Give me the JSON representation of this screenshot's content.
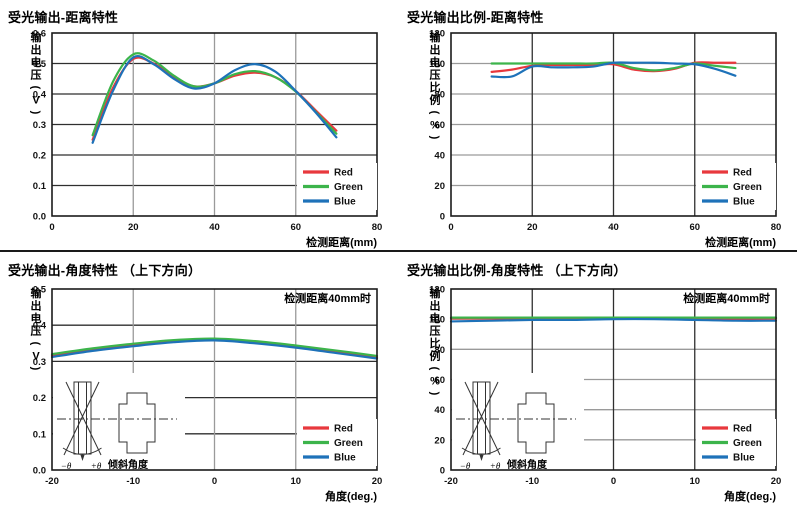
{
  "page": {
    "language": "zh-CN",
    "legend_labels": [
      "Red",
      "Green",
      "Blue"
    ]
  },
  "colors": {
    "red": "#e8383d",
    "green": "#3cb44b",
    "blue": "#1e72b9",
    "grid_dark": "#2f2f2f",
    "grid_light": "#9a9a9a",
    "border": "#1a1a1a",
    "text": "#000000"
  },
  "chart_data": [
    {
      "type": "line",
      "title": "受光输出-距离特性",
      "ylabel": "输出电压（V）",
      "xlabel": "检测距离（mm）",
      "xlim": [
        0,
        80
      ],
      "ylim": [
        0,
        0.6
      ],
      "xticks": [
        0,
        20,
        40,
        60,
        80
      ],
      "xtick_labels": [
        "0",
        "20",
        "40",
        "60",
        "80"
      ],
      "yticks": [
        0,
        0.1,
        0.2,
        0.3,
        0.4,
        0.5,
        0.6
      ],
      "ytick_labels": [
        "0.0",
        "0.1",
        "0.2",
        "0.3",
        "0.4",
        "0.5",
        "0.6"
      ],
      "grid_h": "dark",
      "grid_v": "light",
      "legend_position": "bottom-right-inside",
      "x": [
        10,
        15,
        20,
        25,
        30,
        35,
        40,
        45,
        50,
        55,
        60,
        65,
        70
      ],
      "series": [
        {
          "name": "Red",
          "color": "#e8383d",
          "values": [
            0.25,
            0.42,
            0.515,
            0.5,
            0.455,
            0.425,
            0.435,
            0.46,
            0.47,
            0.455,
            0.41,
            0.345,
            0.28
          ]
        },
        {
          "name": "Green",
          "color": "#3cb44b",
          "values": [
            0.265,
            0.44,
            0.53,
            0.51,
            0.46,
            0.425,
            0.435,
            0.465,
            0.475,
            0.455,
            0.408,
            0.34,
            0.27
          ]
        },
        {
          "name": "Blue",
          "color": "#1e72b9",
          "values": [
            0.24,
            0.41,
            0.52,
            0.498,
            0.45,
            0.418,
            0.435,
            0.478,
            0.498,
            0.473,
            0.41,
            0.338,
            0.258
          ]
        }
      ]
    },
    {
      "type": "line",
      "title": "受光输出比例-距离特性",
      "ylabel": "输出电压比例（%）",
      "xlabel": "检测距离（mm）",
      "xlim": [
        0,
        80
      ],
      "ylim": [
        0,
        120
      ],
      "xticks": [
        0,
        20,
        40,
        60,
        80
      ],
      "xtick_labels": [
        "0",
        "20",
        "40",
        "60",
        "80"
      ],
      "yticks": [
        0,
        20,
        40,
        60,
        80,
        100,
        120
      ],
      "ytick_labels": [
        "0",
        "20",
        "40",
        "60",
        "80",
        "100",
        "120"
      ],
      "grid_h": "light",
      "grid_v": "dark",
      "legend_position": "bottom-right-inside",
      "x": [
        10,
        15,
        20,
        25,
        30,
        35,
        40,
        45,
        50,
        55,
        60,
        65,
        70
      ],
      "series": [
        {
          "name": "Red",
          "color": "#e8383d",
          "values": [
            94.5,
            96,
            98.5,
            99,
            99,
            99,
            99.5,
            96,
            95,
            96.5,
            100.5,
            100.5,
            100.5
          ]
        },
        {
          "name": "Green",
          "color": "#3cb44b",
          "values": [
            100,
            100,
            100,
            100,
            100,
            100,
            100.5,
            97,
            95.5,
            97,
            100,
            98.5,
            97
          ]
        },
        {
          "name": "Blue",
          "color": "#1e72b9",
          "values": [
            91.5,
            91.5,
            98,
            97.5,
            97.5,
            98,
            100.5,
            100.5,
            100.5,
            100,
            99.5,
            96.5,
            92
          ]
        }
      ]
    },
    {
      "type": "line",
      "title": "受光输出-角度特性 （上下方向）",
      "ylabel": "输出电压（V）",
      "xlabel": "角度（deg.）",
      "annotation": "检测距离40mm时",
      "inset_label": "倾斜角度",
      "inset_theta_minus": "−θ",
      "inset_theta_plus": "+θ",
      "xlim": [
        -20,
        20
      ],
      "ylim": [
        0,
        0.5
      ],
      "xticks": [
        -20,
        -10,
        0,
        10,
        20
      ],
      "xtick_labels": [
        "-20",
        "-10",
        "0",
        "10",
        "20"
      ],
      "yticks": [
        0,
        0.1,
        0.2,
        0.3,
        0.4,
        0.5
      ],
      "ytick_labels": [
        "0.0",
        "0.1",
        "0.2",
        "0.3",
        "0.4",
        "0.5"
      ],
      "grid_h": "dark",
      "grid_v": "light",
      "legend_position": "bottom-right-inside",
      "x": [
        -20,
        -15,
        -10,
        -5,
        0,
        5,
        10,
        15,
        20
      ],
      "series": [
        {
          "name": "Red",
          "color": "#e8383d",
          "values": [
            0.316,
            0.332,
            0.345,
            0.356,
            0.36,
            0.352,
            0.34,
            0.326,
            0.311
          ]
        },
        {
          "name": "Green",
          "color": "#3cb44b",
          "values": [
            0.32,
            0.336,
            0.349,
            0.359,
            0.363,
            0.356,
            0.344,
            0.33,
            0.315
          ]
        },
        {
          "name": "Blue",
          "color": "#1e72b9",
          "values": [
            0.312,
            0.329,
            0.342,
            0.353,
            0.358,
            0.35,
            0.338,
            0.323,
            0.308
          ]
        }
      ]
    },
    {
      "type": "line",
      "title": "受光输出比例-角度特性 （上下方向）",
      "ylabel": "输出电压比例（%）",
      "xlabel": "角度（deg.）",
      "annotation": "检测距离40mm时",
      "inset_label": "倾斜角度",
      "inset_theta_minus": "−θ",
      "inset_theta_plus": "+θ",
      "xlim": [
        -20,
        20
      ],
      "ylim": [
        0,
        120
      ],
      "xticks": [
        -20,
        -10,
        0,
        10,
        20
      ],
      "xtick_labels": [
        "-20",
        "-10",
        "0",
        "10",
        "20"
      ],
      "yticks": [
        0,
        20,
        40,
        60,
        80,
        100,
        120
      ],
      "ytick_labels": [
        "0",
        "20",
        "40",
        "60",
        "80",
        "100",
        "120"
      ],
      "grid_h": "light",
      "grid_v": "dark",
      "legend_position": "bottom-right-inside",
      "x": [
        -20,
        -15,
        -10,
        -5,
        0,
        5,
        10,
        15,
        20
      ],
      "series": [
        {
          "name": "Red",
          "color": "#e8383d",
          "values": [
            100.5,
            100.5,
            100.5,
            100.5,
            100.5,
            100.3,
            100,
            100,
            100.5
          ]
        },
        {
          "name": "Green",
          "color": "#3cb44b",
          "values": [
            101,
            101,
            101,
            101,
            101,
            101,
            101,
            101,
            101
          ]
        },
        {
          "name": "Blue",
          "color": "#1e72b9",
          "values": [
            98.5,
            99,
            99.5,
            99.5,
            100,
            100,
            99.5,
            99,
            99
          ]
        }
      ]
    }
  ]
}
